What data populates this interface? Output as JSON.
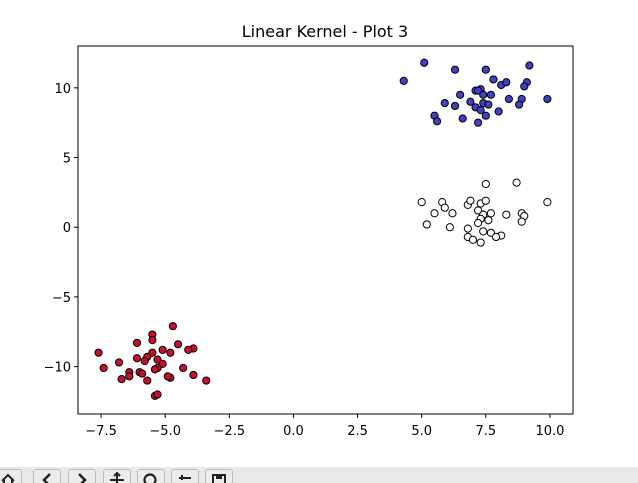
{
  "colors": {
    "blue": "#4040c8",
    "white": "#ffffff",
    "red": "#c8102e",
    "edge": "#000000",
    "toolbar_bg": "#e9e9e9"
  },
  "toolbar": {
    "buttons": [
      {
        "name": "home-button",
        "icon": "home-icon"
      },
      {
        "name": "back-button",
        "icon": "arrow-left-icon"
      },
      {
        "name": "forward-button",
        "icon": "arrow-right-icon"
      },
      {
        "name": "pan-button",
        "icon": "move-icon"
      },
      {
        "name": "zoom-button",
        "icon": "magnifier-icon"
      },
      {
        "name": "configure-subplots-button",
        "icon": "sliders-icon"
      },
      {
        "name": "save-button",
        "icon": "floppy-disk-icon"
      }
    ]
  },
  "chart_data": {
    "type": "scatter",
    "title": "Linear Kernel - Plot 3",
    "xlabel": "",
    "ylabel": "",
    "xlim": [
      -8.4,
      10.9
    ],
    "ylim": [
      -13.4,
      13.0
    ],
    "xticks": [
      -7.5,
      -5.0,
      -2.5,
      0.0,
      2.5,
      5.0,
      7.5,
      10.0
    ],
    "xtick_labels": [
      "−7.5",
      "−5.0",
      "−2.5",
      "0.0",
      "2.5",
      "5.0",
      "7.5",
      "10.0"
    ],
    "yticks": [
      -10,
      -5,
      0,
      5,
      10
    ],
    "ytick_labels": [
      "−10",
      "−5",
      "0",
      "5",
      "10"
    ],
    "grid": false,
    "series": [
      {
        "color": "#4040c8",
        "points": [
          [
            4.3,
            10.5
          ],
          [
            5.1,
            11.8
          ],
          [
            6.3,
            11.3
          ],
          [
            7.5,
            11.3
          ],
          [
            9.2,
            11.6
          ],
          [
            7.8,
            10.6
          ],
          [
            8.1,
            10.2
          ],
          [
            8.3,
            10.4
          ],
          [
            9.1,
            10.4
          ],
          [
            9.0,
            10.1
          ],
          [
            7.1,
            9.8
          ],
          [
            7.3,
            9.9
          ],
          [
            7.2,
            9.8
          ],
          [
            7.7,
            9.5
          ],
          [
            6.5,
            9.5
          ],
          [
            7.4,
            9.5
          ],
          [
            8.4,
            9.2
          ],
          [
            8.9,
            9.2
          ],
          [
            9.9,
            9.2
          ],
          [
            5.9,
            8.9
          ],
          [
            6.9,
            9.0
          ],
          [
            7.4,
            8.9
          ],
          [
            7.6,
            8.8
          ],
          [
            8.8,
            8.8
          ],
          [
            6.3,
            8.7
          ],
          [
            7.1,
            8.6
          ],
          [
            7.3,
            8.4
          ],
          [
            8.0,
            8.3
          ],
          [
            5.5,
            8.0
          ],
          [
            6.6,
            7.8
          ],
          [
            7.5,
            8.0
          ],
          [
            5.6,
            7.6
          ],
          [
            7.2,
            7.5
          ]
        ]
      },
      {
        "color": "#ffffff",
        "points": [
          [
            7.5,
            3.1
          ],
          [
            8.7,
            3.2
          ],
          [
            5.0,
            1.8
          ],
          [
            5.8,
            1.8
          ],
          [
            6.8,
            1.6
          ],
          [
            6.9,
            1.9
          ],
          [
            7.3,
            1.7
          ],
          [
            7.5,
            1.9
          ],
          [
            9.9,
            1.8
          ],
          [
            5.9,
            1.4
          ],
          [
            5.5,
            1.0
          ],
          [
            6.2,
            1.0
          ],
          [
            7.2,
            1.2
          ],
          [
            7.4,
            0.9
          ],
          [
            7.7,
            1.0
          ],
          [
            8.3,
            0.9
          ],
          [
            8.9,
            1.0
          ],
          [
            9.0,
            0.8
          ],
          [
            7.3,
            0.6
          ],
          [
            7.6,
            0.5
          ],
          [
            7.2,
            0.3
          ],
          [
            8.9,
            0.4
          ],
          [
            5.2,
            0.2
          ],
          [
            6.1,
            0.0
          ],
          [
            6.8,
            -0.1
          ],
          [
            7.4,
            -0.3
          ],
          [
            7.7,
            -0.4
          ],
          [
            8.1,
            -0.6
          ],
          [
            6.8,
            -0.7
          ],
          [
            7.0,
            -0.9
          ],
          [
            7.3,
            -1.1
          ],
          [
            7.9,
            -0.7
          ]
        ]
      },
      {
        "color": "#c8102e",
        "points": [
          [
            -4.7,
            -7.1
          ],
          [
            -5.5,
            -7.7
          ],
          [
            -6.1,
            -8.3
          ],
          [
            -5.5,
            -8.1
          ],
          [
            -4.5,
            -8.4
          ],
          [
            -3.9,
            -8.7
          ],
          [
            -4.1,
            -8.8
          ],
          [
            -7.6,
            -9.0
          ],
          [
            -5.5,
            -9.0
          ],
          [
            -5.1,
            -8.8
          ],
          [
            -4.8,
            -9.0
          ],
          [
            -6.1,
            -9.4
          ],
          [
            -5.7,
            -9.3
          ],
          [
            -5.3,
            -9.5
          ],
          [
            -6.8,
            -9.7
          ],
          [
            -5.8,
            -9.6
          ],
          [
            -5.1,
            -9.8
          ],
          [
            -4.3,
            -10.1
          ],
          [
            -7.4,
            -10.1
          ],
          [
            -5.3,
            -10.1
          ],
          [
            -6.4,
            -10.4
          ],
          [
            -6.0,
            -10.4
          ],
          [
            -5.4,
            -10.2
          ],
          [
            -6.4,
            -10.7
          ],
          [
            -5.9,
            -10.5
          ],
          [
            -3.9,
            -10.6
          ],
          [
            -4.8,
            -10.8
          ],
          [
            -6.7,
            -10.9
          ],
          [
            -5.7,
            -11.0
          ],
          [
            -4.9,
            -10.7
          ],
          [
            -3.4,
            -11.0
          ],
          [
            -5.4,
            -12.1
          ],
          [
            -5.3,
            -12.0
          ]
        ]
      }
    ]
  }
}
